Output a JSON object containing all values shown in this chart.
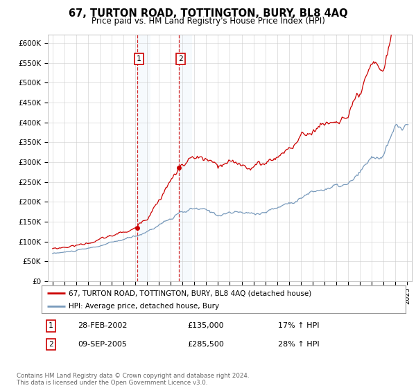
{
  "title": "67, TURTON ROAD, TOTTINGTON, BURY, BL8 4AQ",
  "subtitle": "Price paid vs. HM Land Registry's House Price Index (HPI)",
  "sale1_date": "28-FEB-2002",
  "sale1_price": 135000,
  "sale1_hpi": "17% ↑ HPI",
  "sale2_date": "09-SEP-2005",
  "sale2_price": 285500,
  "sale2_hpi": "28% ↑ HPI",
  "sale1_x": 2002.16,
  "sale2_x": 2005.69,
  "legend1": "67, TURTON ROAD, TOTTINGTON, BURY, BL8 4AQ (detached house)",
  "legend2": "HPI: Average price, detached house, Bury",
  "footer": "Contains HM Land Registry data © Crown copyright and database right 2024.\nThis data is licensed under the Open Government Licence v3.0.",
  "ylim": [
    0,
    620000
  ],
  "xlim_start": 1994.6,
  "xlim_end": 2025.4,
  "background_color": "#ffffff",
  "grid_color": "#cccccc",
  "hpi_line_color": "#7799bb",
  "sale_line_color": "#cc0000",
  "vline_color": "#cc0000",
  "highlight_color": "#d0e8f8",
  "box_color": "#cc0000"
}
